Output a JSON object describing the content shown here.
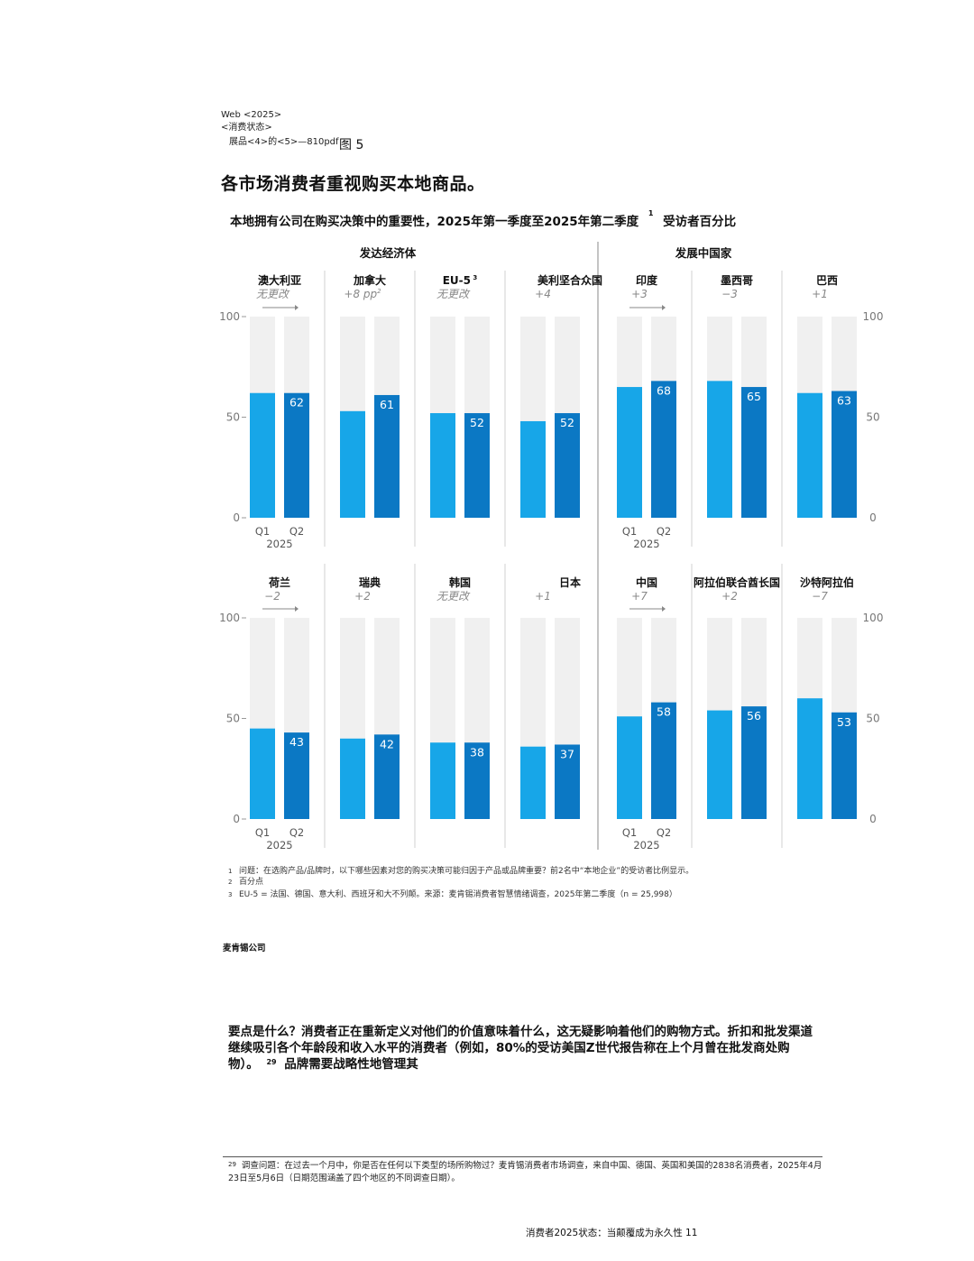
{
  "header": {
    "line1": "Web <2025>",
    "line2": "<消费状态>",
    "line3": "展品<4>的<5>—810pdf",
    "figure_label": "图 5"
  },
  "headline": "各市场消费者重视购买本地商品。",
  "subtitle": {
    "text": "本地拥有公司在购买决策中的重要性，2025年第一季度至2025年第二季度",
    "sup": "1",
    "unit": "受访者百分比"
  },
  "groups": {
    "developed": "发达经济体",
    "developing": "发展中国家"
  },
  "axis": {
    "ticks": [
      "100",
      "50",
      "0"
    ],
    "q1": "Q1",
    "q2": "Q2",
    "year": "2025"
  },
  "chart_data": {
    "type": "bar",
    "ylim": [
      0,
      100
    ],
    "ylabel": "",
    "categories": [
      "Q1",
      "Q2"
    ],
    "colors": {
      "q1": "#17a6e8",
      "q2": "#0b78c4",
      "track": "#f0f0f0"
    },
    "panels": [
      {
        "name": "澳大利亚",
        "change": "无更改",
        "change_italic": true,
        "arrow": true,
        "q1": 62,
        "q2": 62
      },
      {
        "name": "加拿大",
        "change": "+8 pp",
        "change_sup": "2",
        "q1": 53,
        "q2": 61
      },
      {
        "name": "EU-5",
        "name_sup": "3",
        "change": "无更改",
        "q1": 52,
        "q2": 52
      },
      {
        "name": "美利坚合众国",
        "change": "+4",
        "q1": 48,
        "q2": 52
      },
      {
        "name": "印度",
        "change": "+3",
        "arrow": true,
        "q1": 65,
        "q2": 68
      },
      {
        "name": "墨西哥",
        "change": "−3",
        "q1": 68,
        "q2": 65
      },
      {
        "name": "巴西",
        "change": "+1",
        "q1": 62,
        "q2": 63
      },
      {
        "name": "荷兰",
        "change": "−2",
        "arrow": true,
        "q1": 45,
        "q2": 43
      },
      {
        "name": "瑞典",
        "change": "+2",
        "q1": 40,
        "q2": 42
      },
      {
        "name": "韩国",
        "change": "无更改",
        "q1": 38,
        "q2": 38
      },
      {
        "name": "日本",
        "change": "+1",
        "q1": 36,
        "q2": 37
      },
      {
        "name": "中国",
        "change": "+7",
        "arrow": true,
        "q1": 51,
        "q2": 58
      },
      {
        "name": "阿拉伯联合酋长国",
        "change": "+2",
        "q1": 54,
        "q2": 56
      },
      {
        "name": "沙特阿拉伯",
        "change": "−7",
        "q1": 60,
        "q2": 53
      }
    ]
  },
  "footnotes": [
    {
      "num": "1",
      "text": "问题：在选购产品/品牌时，以下哪些因素对您的购买决策可能归因于产品或品牌重要？前2名中“本地企业”的受访者比例显示。"
    },
    {
      "num": "2",
      "text": "百分点"
    },
    {
      "num": "3",
      "text": "EU-5 = 法国、德国、意大利、西班牙和大不列颠。来源：麦肯锡消费者智慧情绪调查，2025年第二季度（n = 25,998）"
    }
  ],
  "brand": "麦肯锡公司",
  "body": {
    "text": "要点是什么？消费者正在重新定义对他们的价值意味着什么，这无疑影响着他们的购物方式。折扣和批发渠道继续吸引各个年龄段和收入水平的消费者（例如，80%的受访美国Z世代报告称在上个月曾在批发商处购物）。",
    "sup": "29",
    "tail": "品牌需要战略性地管理其"
  },
  "bottom_footnote": {
    "num": "29",
    "text": "调查问题：在过去一个月中，你是否在任何以下类型的场所购物过？麦肯锡消费者市场调查，来自中国、德国、英国和美国的2838名消费者，2025年4月23日至5月6日（日期范围涵盖了四个地区的不同调查日期）。"
  },
  "footer": "消费者2025状态：当颠覆成为永久性 11"
}
